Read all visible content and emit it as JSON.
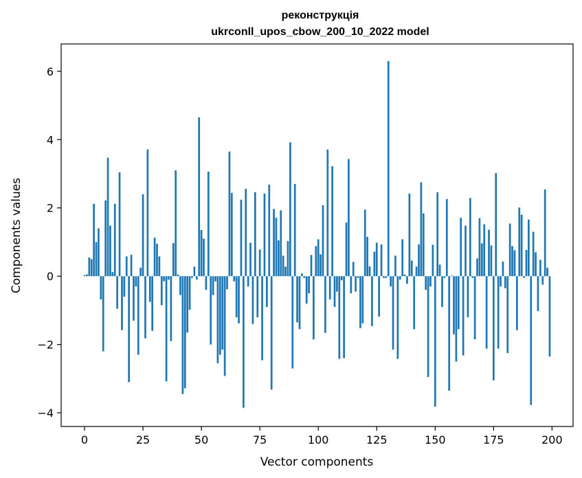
{
  "chart_data": {
    "type": "bar",
    "title": "реконструкція",
    "subtitle": "ukrconll_upos_cbow_200_10_2022 model",
    "xlabel": "Vector components",
    "ylabel": "Components values",
    "xlim": [
      -10,
      209
    ],
    "ylim": [
      -4.4,
      6.8
    ],
    "xticks": [
      0,
      25,
      50,
      75,
      100,
      125,
      150,
      175,
      200
    ],
    "yticks": [
      -4,
      -2,
      0,
      2,
      4,
      6
    ],
    "ytick_labels": [
      "−4",
      "−2",
      "0",
      "2",
      "4",
      "6"
    ],
    "grid": false,
    "bar_color": "#1f77b4",
    "x": [
      0,
      1,
      2,
      3,
      4,
      5,
      6,
      7,
      8,
      9,
      10,
      11,
      12,
      13,
      14,
      15,
      16,
      17,
      18,
      19,
      20,
      21,
      22,
      23,
      24,
      25,
      26,
      27,
      28,
      29,
      30,
      31,
      32,
      33,
      34,
      35,
      36,
      37,
      38,
      39,
      40,
      41,
      42,
      43,
      44,
      45,
      46,
      47,
      48,
      49,
      50,
      51,
      52,
      53,
      54,
      55,
      56,
      57,
      58,
      59,
      60,
      61,
      62,
      63,
      64,
      65,
      66,
      67,
      68,
      69,
      70,
      71,
      72,
      73,
      74,
      75,
      76,
      77,
      78,
      79,
      80,
      81,
      82,
      83,
      84,
      85,
      86,
      87,
      88,
      89,
      90,
      91,
      92,
      93,
      94,
      95,
      96,
      97,
      98,
      99,
      100,
      101,
      102,
      103,
      104,
      105,
      106,
      107,
      108,
      109,
      110,
      111,
      112,
      113,
      114,
      115,
      116,
      117,
      118,
      119,
      120,
      121,
      122,
      123,
      124,
      125,
      126,
      127,
      128,
      129,
      130,
      131,
      132,
      133,
      134,
      135,
      136,
      137,
      138,
      139,
      140,
      141,
      142,
      143,
      144,
      145,
      146,
      147,
      148,
      149,
      150,
      151,
      152,
      153,
      154,
      155,
      156,
      157,
      158,
      159,
      160,
      161,
      162,
      163,
      164,
      165,
      166,
      167,
      168,
      169,
      170,
      171,
      172,
      173,
      174,
      175,
      176,
      177,
      178,
      179,
      180,
      181,
      182,
      183,
      184,
      185,
      186,
      187,
      188,
      189,
      190,
      191,
      192,
      193,
      194,
      195,
      196,
      197,
      198,
      199
    ],
    "values": [
      0.03,
      0.05,
      0.55,
      0.5,
      2.12,
      1.0,
      1.4,
      -0.68,
      -2.2,
      2.22,
      3.47,
      1.48,
      0.12,
      2.12,
      -0.95,
      3.04,
      -1.58,
      -0.6,
      0.58,
      -3.1,
      0.63,
      -1.3,
      -0.3,
      -2.3,
      0.25,
      2.4,
      -1.82,
      3.71,
      -0.75,
      -1.6,
      1.13,
      0.95,
      0.58,
      -0.85,
      -0.15,
      -3.08,
      -0.1,
      -1.9,
      0.97,
      3.1,
      0.05,
      -0.55,
      -3.45,
      -3.28,
      -1.65,
      -0.98,
      -0.05,
      0.28,
      -0.1,
      4.65,
      1.35,
      1.1,
      -0.4,
      3.06,
      -2.0,
      -0.55,
      -0.15,
      -2.55,
      -2.3,
      -2.15,
      -2.92,
      -0.38,
      3.65,
      2.44,
      -0.15,
      -1.2,
      -1.38,
      2.24,
      -3.85,
      2.56,
      -0.3,
      0.98,
      -1.4,
      2.46,
      -1.2,
      0.78,
      -2.46,
      2.42,
      -0.9,
      2.68,
      -3.32,
      1.97,
      1.71,
      1.05,
      1.93,
      0.6,
      0.28,
      1.03,
      3.92,
      -2.7,
      2.7,
      -1.35,
      -1.55,
      0.08,
      -0.05,
      -0.8,
      -0.5,
      0.62,
      -1.85,
      0.88,
      1.08,
      0.64,
      2.08,
      -1.66,
      3.71,
      -0.68,
      3.22,
      -0.9,
      -0.45,
      -2.42,
      -0.12,
      -2.4,
      1.57,
      3.43,
      -0.5,
      0.42,
      -0.45,
      -0.05,
      -1.52,
      -1.38,
      1.95,
      1.15,
      0.29,
      -1.46,
      0.72,
      0.98,
      -1.18,
      0.93,
      -0.05,
      -0.05,
      6.3,
      -0.3,
      -2.15,
      0.6,
      -2.42,
      -0.1,
      1.08,
      0.05,
      -0.22,
      2.42,
      0.46,
      -1.55,
      0.28,
      0.93,
      2.75,
      1.84,
      -0.4,
      -2.95,
      -0.3,
      0.92,
      -3.82,
      2.46,
      0.34,
      -0.9,
      -0.05,
      2.26,
      -3.35,
      0.02,
      -1.7,
      -2.5,
      -1.55,
      1.71,
      -2.32,
      1.48,
      -1.2,
      2.29,
      -0.05,
      -1.85,
      0.52,
      1.7,
      0.96,
      1.52,
      -2.12,
      1.36,
      0.9,
      -3.05,
      3.02,
      -2.12,
      -0.3,
      0.43,
      -0.35,
      -2.25,
      1.54,
      0.88,
      0.76,
      -1.58,
      2.01,
      1.8,
      -0.05,
      0.77,
      1.66,
      -3.77,
      1.3,
      0.7,
      -1.02,
      0.48,
      -0.25,
      2.54,
      0.25,
      -2.35
    ]
  }
}
